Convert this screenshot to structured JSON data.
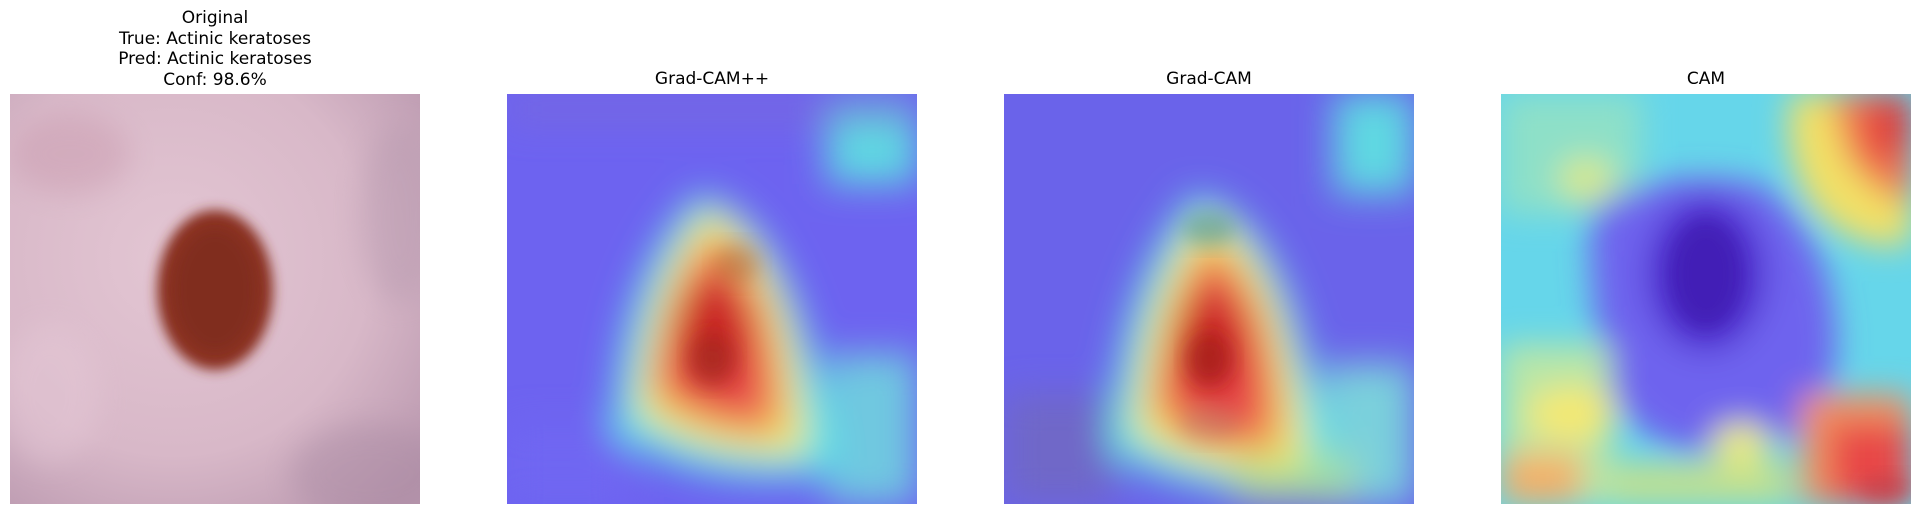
{
  "figure": {
    "panels": [
      {
        "id": "original",
        "title_lines": [
          "Original",
          "True: Actinic keratoses",
          "Pred: Actinic keratoses",
          "Conf: 98.6%"
        ],
        "image": "dermoscopy-skin-lesion"
      },
      {
        "id": "gradcam-plus-plus",
        "title_lines": [
          "Grad-CAM++"
        ],
        "image": "heatmap-overlay"
      },
      {
        "id": "gradcam",
        "title_lines": [
          "Grad-CAM"
        ],
        "image": "heatmap-overlay"
      },
      {
        "id": "cam",
        "title_lines": [
          "CAM"
        ],
        "image": "heatmap-overlay"
      }
    ]
  },
  "colors": {
    "skin": "#d6b7c8",
    "lesion": "#8a3324",
    "heat_low": "#6a5ff0",
    "heat_mid_cyan": "#5fe0e6",
    "heat_mid_yellow": "#f5e86a",
    "heat_high": "#e23a2e"
  }
}
